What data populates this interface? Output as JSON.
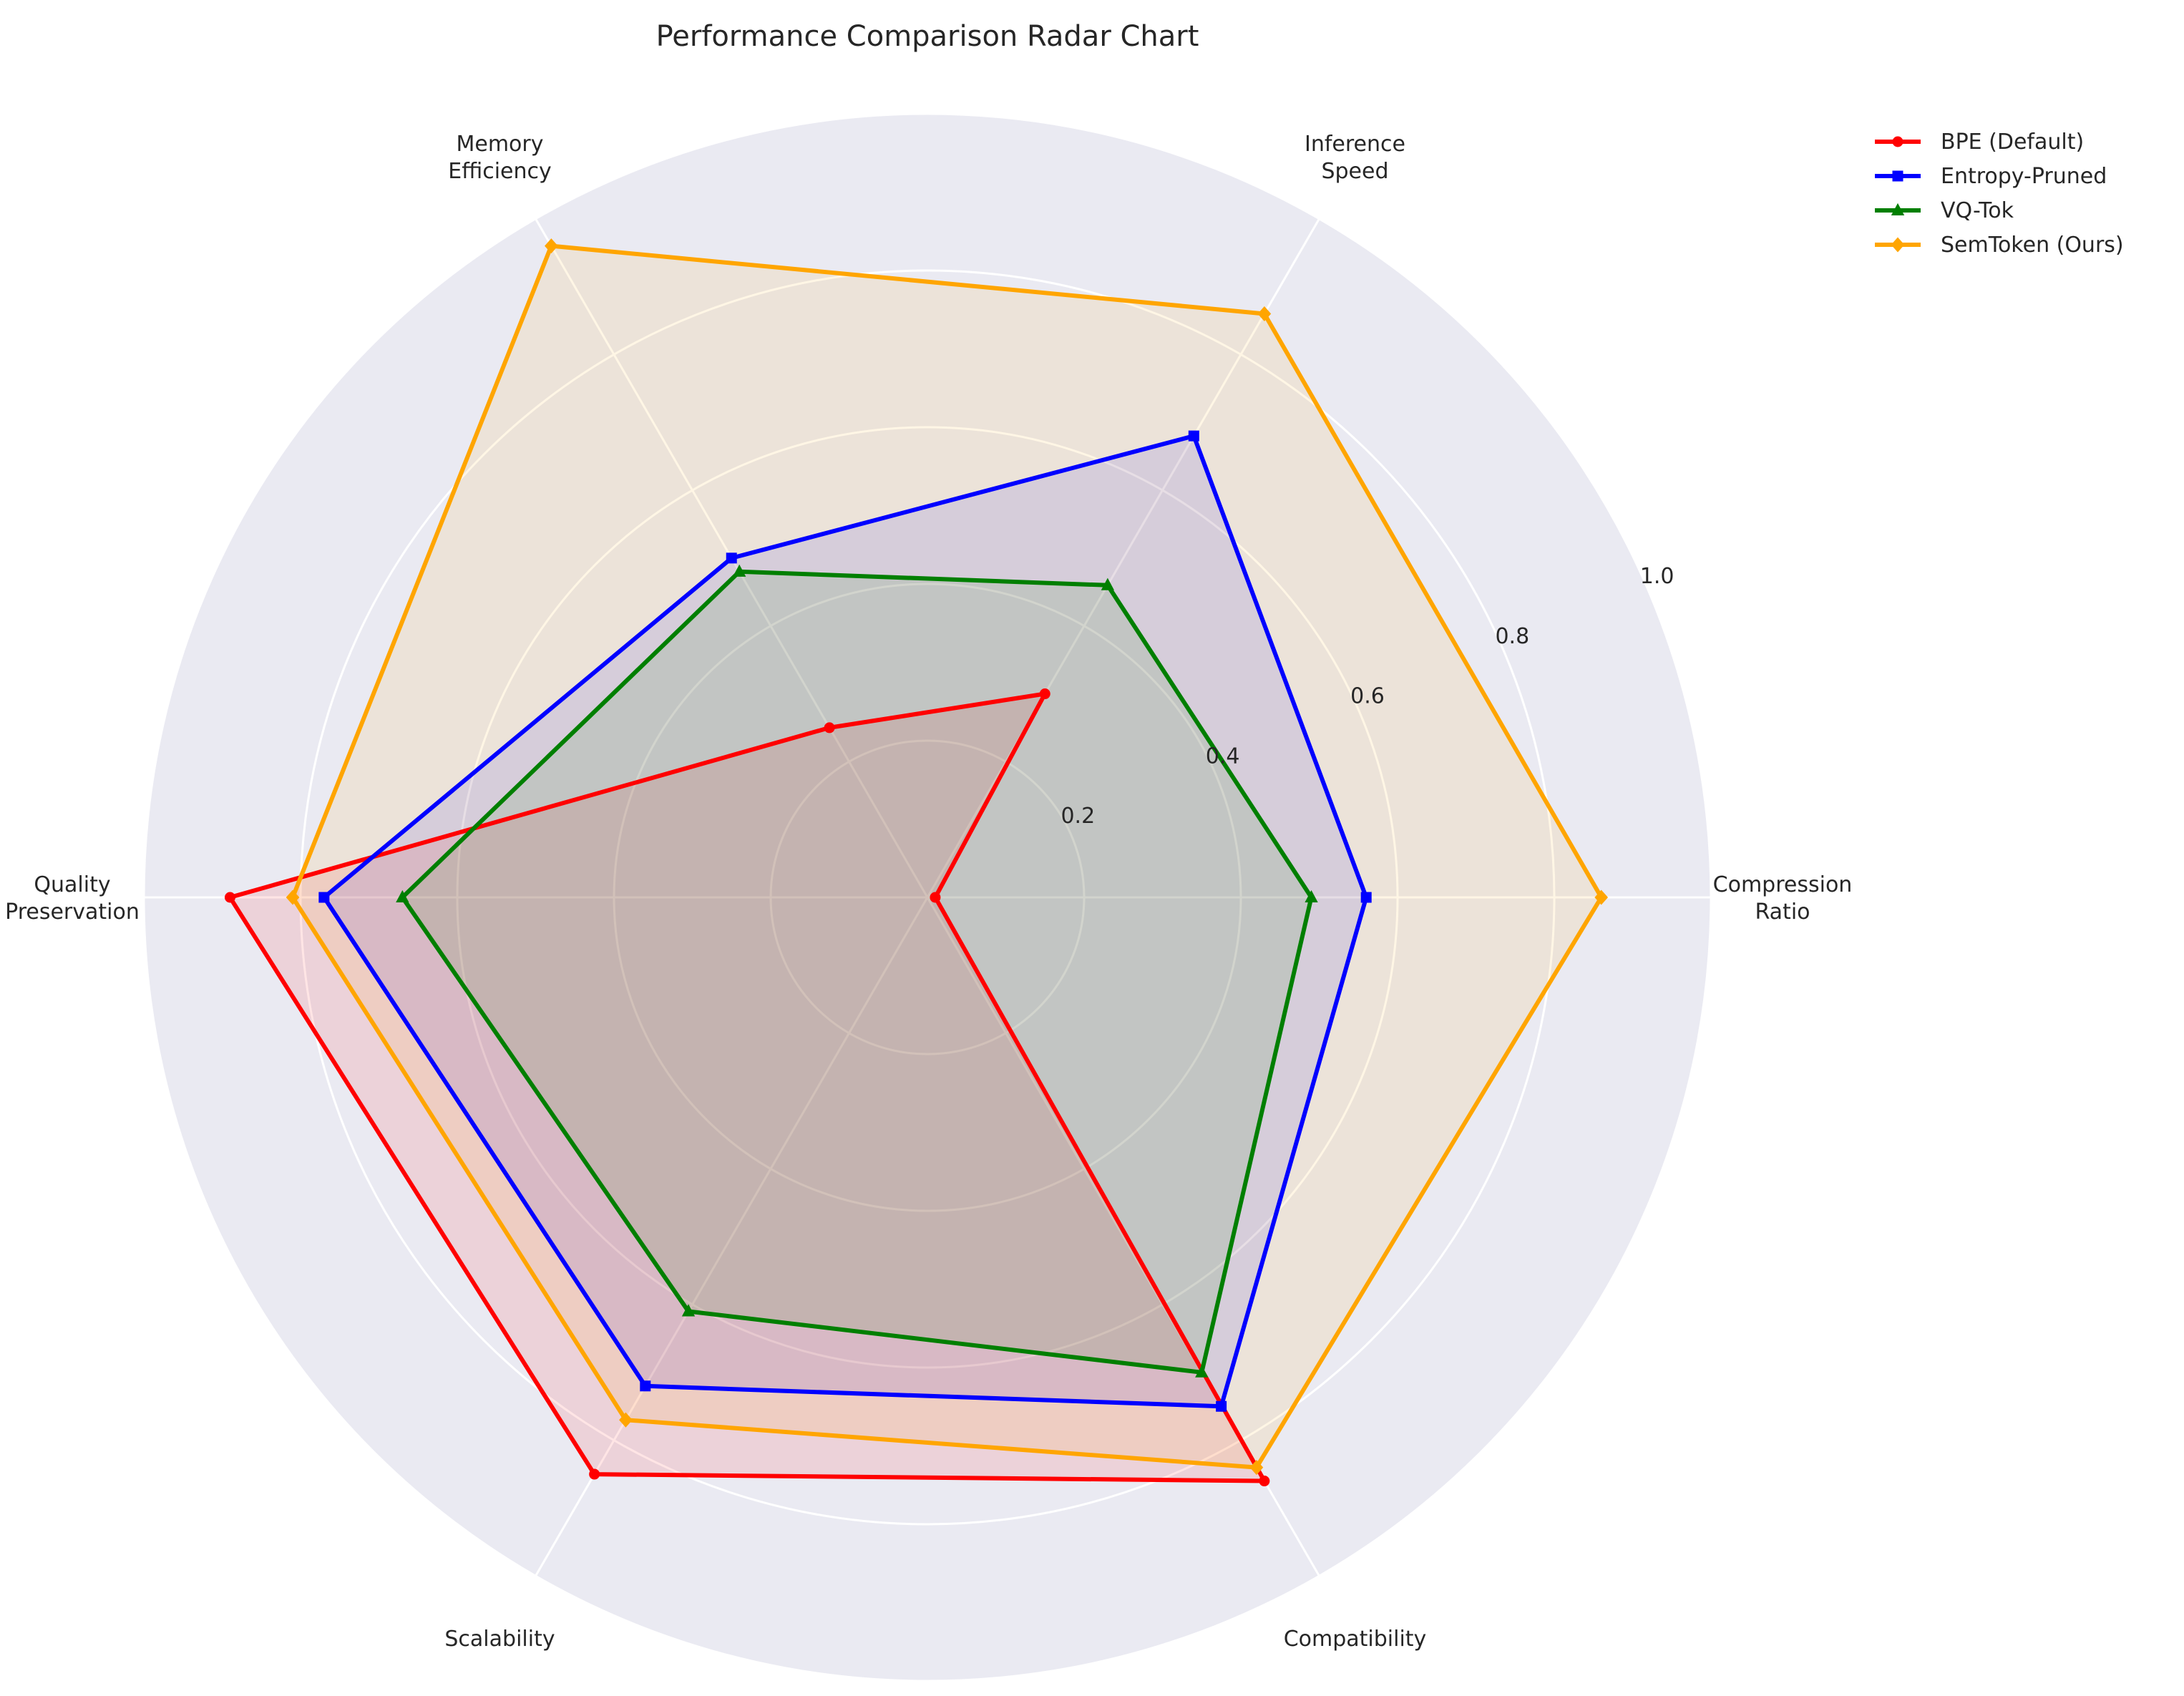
{
  "chart_data": {
    "type": "radar",
    "title": "Performance Comparison Radar Chart",
    "axes": [
      "Compression\nRatio",
      "Inference\nSpeed",
      "Memory\nEfficiency",
      "Quality\nPreservation",
      "Scalability",
      "Compatibility"
    ],
    "rlim": [
      0,
      1.0
    ],
    "rticks": [
      0.2,
      0.4,
      0.6,
      0.8,
      1.0
    ],
    "rtick_labels": [
      "0.2",
      "0.4",
      "0.6",
      "0.8",
      "1.0"
    ],
    "grid": true,
    "legend_position": "upper-right outside",
    "series": [
      {
        "name": "BPE (Default)",
        "color": "#ff0000",
        "marker": "circle",
        "values": [
          0.01,
          0.3,
          0.25,
          0.89,
          0.85,
          0.86
        ]
      },
      {
        "name": "Entropy-Pruned",
        "color": "#0000ff",
        "marker": "square",
        "values": [
          0.56,
          0.68,
          0.5,
          0.77,
          0.72,
          0.75
        ]
      },
      {
        "name": "VQ-Tok",
        "color": "#007f00",
        "marker": "triangle",
        "values": [
          0.49,
          0.46,
          0.48,
          0.67,
          0.61,
          0.7
        ]
      },
      {
        "name": "SemToken (Ours)",
        "color": "#ffa500",
        "marker": "diamond",
        "values": [
          0.86,
          0.86,
          0.96,
          0.81,
          0.77,
          0.84
        ]
      }
    ]
  }
}
